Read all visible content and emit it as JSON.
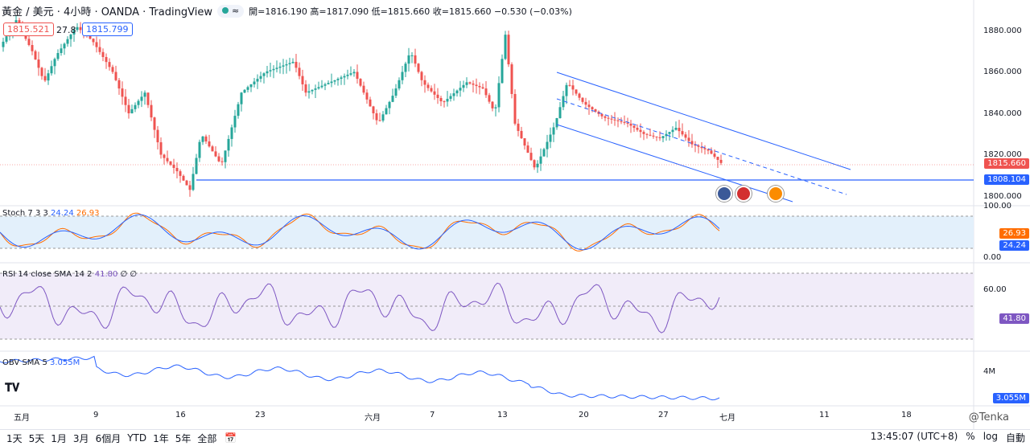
{
  "header": {
    "symbol": "黃金 / 美元 · 4小時 · OANDA · TradingView",
    "pill": "≈",
    "ohlc": "開=1816.190 高=1817.090 低=1815.660 收=1815.660 −0.530 (−0.03%)",
    "bid": "1815.521",
    "spread": "27.8",
    "ask": "1815.799"
  },
  "price_axis": {
    "ticks": [
      "1880.000",
      "1860.000",
      "1840.000",
      "1820.000",
      "1800.000"
    ],
    "last": "1815.660",
    "level": "1808.104"
  },
  "stoch": {
    "label": "Stoch 7 3 3",
    "k": "24.24",
    "d": "26.93",
    "ticks": [
      "100.00",
      "0.00"
    ]
  },
  "rsi": {
    "label": "RSI 14 close SMA 14 2",
    "value": "41.80",
    "extra": "∅ ∅",
    "tick": "60.00"
  },
  "obv": {
    "label": "OBV SMA 5",
    "value": "3.055M",
    "tick": "4M"
  },
  "time_axis": [
    "五月",
    "9",
    "16",
    "23",
    "六月",
    "7",
    "13",
    "20",
    "27",
    "七月",
    "11",
    "18"
  ],
  "toolbar": {
    "ranges": [
      "1天",
      "5天",
      "1月",
      "3月",
      "6個月",
      "YTD",
      "1年",
      "5年",
      "全部"
    ],
    "clock": "13:45:07 (UTC+8)",
    "pct": "%",
    "log": "log",
    "auto": "自動",
    "watermark": "@Tenka"
  },
  "colors": {
    "up": "#26a69a",
    "down": "#ef5350",
    "line": "#2962ff",
    "stochK": "#2962ff",
    "stochD": "#ff6d00",
    "rsi": "#7e57c2",
    "obv": "#2962ff"
  }
}
